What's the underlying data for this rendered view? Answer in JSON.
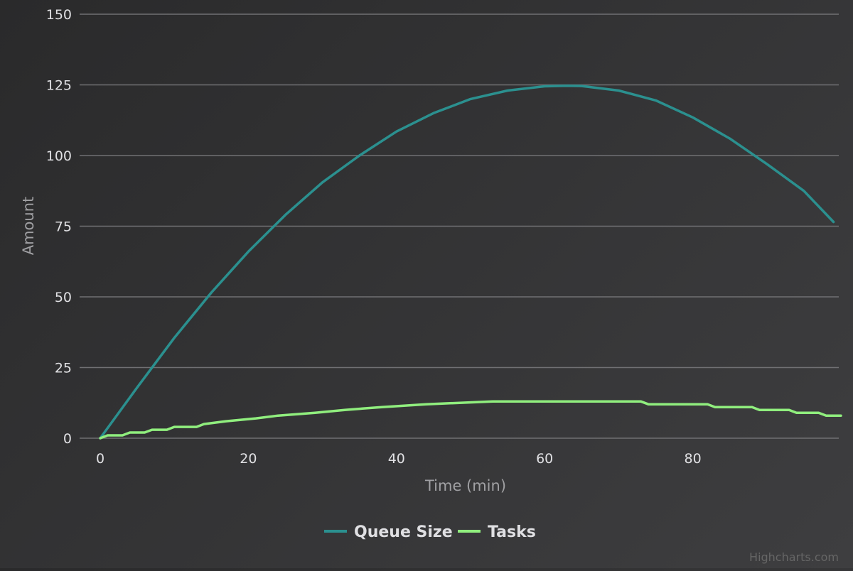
{
  "chart_data": {
    "type": "line",
    "title": "",
    "xlabel": "Time (min)",
    "ylabel": "Amount",
    "xlim": [
      0,
      100
    ],
    "ylim": [
      0,
      150
    ],
    "x_ticks": [
      0,
      20,
      40,
      60,
      80
    ],
    "y_ticks": [
      0,
      25,
      50,
      75,
      100,
      125,
      150
    ],
    "grid": "horizontal",
    "legend_position": "bottom-center",
    "series": [
      {
        "name": "Queue Size",
        "color": "#2b908f",
        "x": [
          0,
          5,
          10,
          15,
          20,
          25,
          30,
          35,
          40,
          45,
          50,
          55,
          60,
          63,
          65,
          70,
          75,
          80,
          85,
          90,
          95,
          99
        ],
        "values": [
          0,
          18,
          35.5,
          51.5,
          66,
          79,
          90.5,
          100,
          108.5,
          115,
          120,
          123,
          124.5,
          124.7,
          124.6,
          123,
          119.5,
          113.5,
          106,
          97,
          87.5,
          76.5
        ]
      },
      {
        "name": "Tasks",
        "color": "#90ee7e",
        "x": [
          0,
          1,
          3,
          4,
          6,
          7,
          9,
          10,
          13,
          14,
          17,
          21,
          24,
          29,
          33,
          38,
          44,
          53,
          73,
          74,
          82,
          83,
          88,
          89,
          93,
          94,
          97,
          98,
          100
        ],
        "values": [
          0,
          1,
          1,
          2,
          2,
          3,
          3,
          4,
          4,
          5,
          6,
          7,
          8,
          9,
          10,
          11,
          12,
          13,
          13,
          12,
          12,
          11,
          11,
          10,
          10,
          9,
          9,
          8,
          8
        ]
      }
    ]
  },
  "credits": "Highcharts.com"
}
